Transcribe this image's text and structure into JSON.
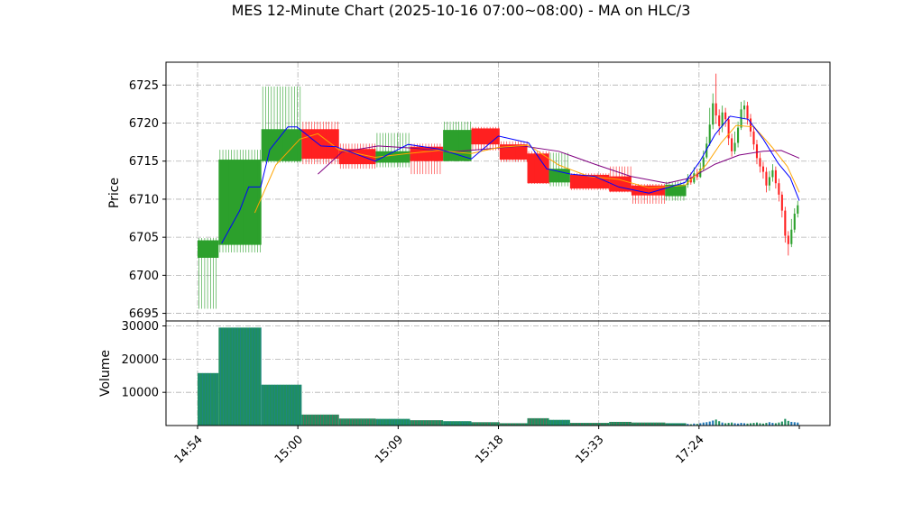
{
  "chart_data": {
    "type": "candlestick",
    "title": "MES 12-Minute Chart (2025-10-16 07:00~08:00) - MA on HLC/3",
    "price_axis": {
      "ylabel": "Price",
      "ticks": [
        6695,
        6700,
        6705,
        6710,
        6715,
        6720,
        6725
      ],
      "ylim": [
        6694,
        6728
      ]
    },
    "volume_axis": {
      "ylabel": "Volume",
      "ticks": [
        10000,
        20000,
        30000
      ],
      "tick_labels": [
        "10000",
        "20000",
        "30000"
      ],
      "ylim": [
        0,
        31500
      ]
    },
    "x_tick_labels": [
      "14:54",
      "15:00",
      "15:09",
      "15:18",
      "15:33",
      "17:24"
    ],
    "grid": true,
    "colors": {
      "up": "#2ca02c",
      "down": "#ff2020",
      "ma_fast": "#0000ff",
      "ma_mid": "#ffa500",
      "ma_slow": "#800080",
      "volume": "#1f8f5f"
    },
    "segments": [
      {
        "x_start": 0.0,
        "x_end": 0.035,
        "open": 6702.3,
        "close": 6704.6,
        "high": 6704.9,
        "low": 6695.6,
        "volume": 15800
      },
      {
        "x_start": 0.035,
        "x_end": 0.106,
        "open": 6704.0,
        "close": 6715.2,
        "high": 6716.5,
        "low": 6703.0,
        "volume": 29500
      },
      {
        "x_start": 0.106,
        "x_end": 0.173,
        "open": 6715.0,
        "close": 6719.2,
        "high": 6724.8,
        "low": 6714.8,
        "volume": 12300
      },
      {
        "x_start": 0.173,
        "x_end": 0.235,
        "open": 6719.2,
        "close": 6715.3,
        "high": 6720.2,
        "low": 6714.6,
        "volume": 3300
      },
      {
        "x_start": 0.235,
        "x_end": 0.296,
        "open": 6716.6,
        "close": 6714.6,
        "high": 6717.3,
        "low": 6714.0,
        "volume": 2100
      },
      {
        "x_start": 0.296,
        "x_end": 0.353,
        "open": 6714.8,
        "close": 6716.3,
        "high": 6718.7,
        "low": 6714.2,
        "volume": 2000
      },
      {
        "x_start": 0.353,
        "x_end": 0.408,
        "open": 6716.9,
        "close": 6715.0,
        "high": 6717.3,
        "low": 6713.3,
        "volume": 1600
      },
      {
        "x_start": 0.408,
        "x_end": 0.455,
        "open": 6715.0,
        "close": 6719.1,
        "high": 6720.2,
        "low": 6715.0,
        "volume": 1300
      },
      {
        "x_start": 0.455,
        "x_end": 0.502,
        "open": 6719.3,
        "close": 6717.2,
        "high": 6719.5,
        "low": 6716.4,
        "volume": 1000
      },
      {
        "x_start": 0.502,
        "x_end": 0.548,
        "open": 6717.2,
        "close": 6715.2,
        "high": 6717.6,
        "low": 6714.9,
        "volume": 700
      },
      {
        "x_start": 0.548,
        "x_end": 0.584,
        "open": 6716.0,
        "close": 6712.1,
        "high": 6716.3,
        "low": 6712.0,
        "volume": 2200
      },
      {
        "x_start": 0.584,
        "x_end": 0.619,
        "open": 6712.2,
        "close": 6714.0,
        "high": 6716.1,
        "low": 6711.7,
        "volume": 1700
      },
      {
        "x_start": 0.619,
        "x_end": 0.684,
        "open": 6713.2,
        "close": 6711.4,
        "high": 6713.4,
        "low": 6711.2,
        "volume": 800
      },
      {
        "x_start": 0.684,
        "x_end": 0.721,
        "open": 6713.0,
        "close": 6711.0,
        "high": 6714.3,
        "low": 6710.9,
        "volume": 1100
      },
      {
        "x_start": 0.721,
        "x_end": 0.777,
        "open": 6711.8,
        "close": 6710.5,
        "high": 6712.0,
        "low": 6709.4,
        "volume": 900
      },
      {
        "x_start": 0.777,
        "x_end": 0.812,
        "open": 6710.4,
        "close": 6711.9,
        "high": 6712.3,
        "low": 6709.8,
        "volume": 700
      }
    ],
    "tail_candles": [
      {
        "o": 6711.9,
        "c": 6712.8,
        "h": 6713.3,
        "l": 6711.5,
        "v": 500
      },
      {
        "o": 6712.8,
        "c": 6712.2,
        "h": 6713.5,
        "l": 6711.9,
        "v": 400
      },
      {
        "o": 6712.2,
        "c": 6713.4,
        "h": 6714.2,
        "l": 6712.0,
        "v": 600
      },
      {
        "o": 6713.4,
        "c": 6712.9,
        "h": 6714.0,
        "l": 6712.5,
        "v": 500
      },
      {
        "o": 6712.9,
        "c": 6714.0,
        "h": 6714.8,
        "l": 6712.8,
        "v": 700
      },
      {
        "o": 6714.0,
        "c": 6715.5,
        "h": 6716.4,
        "l": 6713.8,
        "v": 900
      },
      {
        "o": 6715.5,
        "c": 6717.3,
        "h": 6718.2,
        "l": 6715.3,
        "v": 1000
      },
      {
        "o": 6717.3,
        "c": 6719.8,
        "h": 6722.0,
        "l": 6717.0,
        "v": 1200
      },
      {
        "o": 6719.8,
        "c": 6722.6,
        "h": 6723.9,
        "l": 6719.2,
        "v": 1500
      },
      {
        "o": 6722.6,
        "c": 6721.0,
        "h": 6726.5,
        "l": 6719.9,
        "v": 1800
      },
      {
        "o": 6721.0,
        "c": 6719.6,
        "h": 6721.8,
        "l": 6718.4,
        "v": 1300
      },
      {
        "o": 6719.6,
        "c": 6721.4,
        "h": 6722.3,
        "l": 6718.8,
        "v": 900
      },
      {
        "o": 6721.4,
        "c": 6720.5,
        "h": 6722.0,
        "l": 6719.5,
        "v": 700
      },
      {
        "o": 6720.5,
        "c": 6718.0,
        "h": 6720.9,
        "l": 6717.1,
        "v": 800
      },
      {
        "o": 6718.0,
        "c": 6716.3,
        "h": 6718.6,
        "l": 6715.6,
        "v": 900
      },
      {
        "o": 6716.3,
        "c": 6717.4,
        "h": 6718.9,
        "l": 6715.9,
        "v": 700
      },
      {
        "o": 6717.4,
        "c": 6719.4,
        "h": 6720.2,
        "l": 6716.8,
        "v": 600
      },
      {
        "o": 6719.4,
        "c": 6721.8,
        "h": 6722.8,
        "l": 6719.1,
        "v": 800
      },
      {
        "o": 6721.8,
        "c": 6722.3,
        "h": 6723.0,
        "l": 6720.5,
        "v": 700
      },
      {
        "o": 6722.3,
        "c": 6720.6,
        "h": 6722.8,
        "l": 6719.8,
        "v": 600
      },
      {
        "o": 6720.6,
        "c": 6718.9,
        "h": 6721.2,
        "l": 6718.2,
        "v": 700
      },
      {
        "o": 6718.9,
        "c": 6717.2,
        "h": 6719.5,
        "l": 6716.5,
        "v": 800
      },
      {
        "o": 6717.2,
        "c": 6715.4,
        "h": 6717.8,
        "l": 6714.6,
        "v": 900
      },
      {
        "o": 6715.4,
        "c": 6714.3,
        "h": 6716.1,
        "l": 6713.5,
        "v": 700
      },
      {
        "o": 6714.3,
        "c": 6713.6,
        "h": 6714.9,
        "l": 6712.7,
        "v": 600
      },
      {
        "o": 6713.6,
        "c": 6711.8,
        "h": 6714.2,
        "l": 6710.9,
        "v": 800
      },
      {
        "o": 6711.8,
        "c": 6712.9,
        "h": 6713.7,
        "l": 6711.1,
        "v": 1000
      },
      {
        "o": 6712.9,
        "c": 6713.8,
        "h": 6714.6,
        "l": 6712.3,
        "v": 800
      },
      {
        "o": 6713.8,
        "c": 6712.1,
        "h": 6714.3,
        "l": 6711.4,
        "v": 700
      },
      {
        "o": 6712.1,
        "c": 6710.6,
        "h": 6712.7,
        "l": 6709.7,
        "v": 900
      },
      {
        "o": 6710.6,
        "c": 6708.5,
        "h": 6711.0,
        "l": 6707.6,
        "v": 1200
      },
      {
        "o": 6708.5,
        "c": 6705.2,
        "h": 6709.0,
        "l": 6704.3,
        "v": 2000
      },
      {
        "o": 6705.2,
        "c": 6704.1,
        "h": 6705.8,
        "l": 6702.6,
        "v": 1400
      },
      {
        "o": 6704.1,
        "c": 6706.0,
        "h": 6707.4,
        "l": 6703.7,
        "v": 1100
      },
      {
        "o": 6706.0,
        "c": 6708.1,
        "h": 6708.8,
        "l": 6705.6,
        "v": 1000
      },
      {
        "o": 6708.1,
        "c": 6709.2,
        "h": 6709.8,
        "l": 6707.6,
        "v": 900
      }
    ],
    "ma_fast": [
      [
        0.04,
        6704.2
      ],
      [
        0.07,
        6708.5
      ],
      [
        0.085,
        6711.6
      ],
      [
        0.105,
        6711.6
      ],
      [
        0.12,
        6716.5
      ],
      [
        0.15,
        6719.5
      ],
      [
        0.165,
        6719.5
      ],
      [
        0.205,
        6717.0
      ],
      [
        0.23,
        6716.9
      ],
      [
        0.295,
        6715.0
      ],
      [
        0.35,
        6717.2
      ],
      [
        0.4,
        6716.6
      ],
      [
        0.455,
        6715.3
      ],
      [
        0.5,
        6718.3
      ],
      [
        0.55,
        6717.4
      ],
      [
        0.58,
        6714.0
      ],
      [
        0.62,
        6713.3
      ],
      [
        0.66,
        6713.0
      ],
      [
        0.7,
        6711.6
      ],
      [
        0.75,
        6710.8
      ],
      [
        0.81,
        6712.2
      ],
      [
        0.835,
        6715.0
      ],
      [
        0.86,
        6718.5
      ],
      [
        0.885,
        6720.9
      ],
      [
        0.915,
        6720.5
      ],
      [
        0.94,
        6717.9
      ],
      [
        0.965,
        6714.7
      ],
      [
        0.985,
        6712.8
      ],
      [
        1.0,
        6709.8
      ]
    ],
    "ma_mid": [
      [
        0.095,
        6708.2
      ],
      [
        0.13,
        6714.5
      ],
      [
        0.17,
        6717.9
      ],
      [
        0.2,
        6718.6
      ],
      [
        0.235,
        6716.5
      ],
      [
        0.295,
        6715.5
      ],
      [
        0.35,
        6716.0
      ],
      [
        0.4,
        6716.4
      ],
      [
        0.455,
        6716.0
      ],
      [
        0.5,
        6716.8
      ],
      [
        0.55,
        6717.1
      ],
      [
        0.6,
        6714.5
      ],
      [
        0.65,
        6713.0
      ],
      [
        0.7,
        6712.6
      ],
      [
        0.75,
        6711.5
      ],
      [
        0.81,
        6711.8
      ],
      [
        0.845,
        6714.5
      ],
      [
        0.87,
        6717.4
      ],
      [
        0.895,
        6719.7
      ],
      [
        0.925,
        6719.5
      ],
      [
        0.955,
        6716.8
      ],
      [
        0.98,
        6714.3
      ],
      [
        1.0,
        6710.9
      ]
    ],
    "ma_slow": [
      [
        0.2,
        6713.3
      ],
      [
        0.24,
        6716.2
      ],
      [
        0.3,
        6717.0
      ],
      [
        0.36,
        6716.7
      ],
      [
        0.42,
        6716.2
      ],
      [
        0.48,
        6716.6
      ],
      [
        0.54,
        6717.0
      ],
      [
        0.6,
        6716.3
      ],
      [
        0.66,
        6714.6
      ],
      [
        0.72,
        6713.0
      ],
      [
        0.78,
        6712.1
      ],
      [
        0.82,
        6712.8
      ],
      [
        0.86,
        6714.6
      ],
      [
        0.9,
        6715.8
      ],
      [
        0.94,
        6716.3
      ],
      [
        0.97,
        6716.4
      ],
      [
        1.0,
        6715.4
      ]
    ]
  }
}
